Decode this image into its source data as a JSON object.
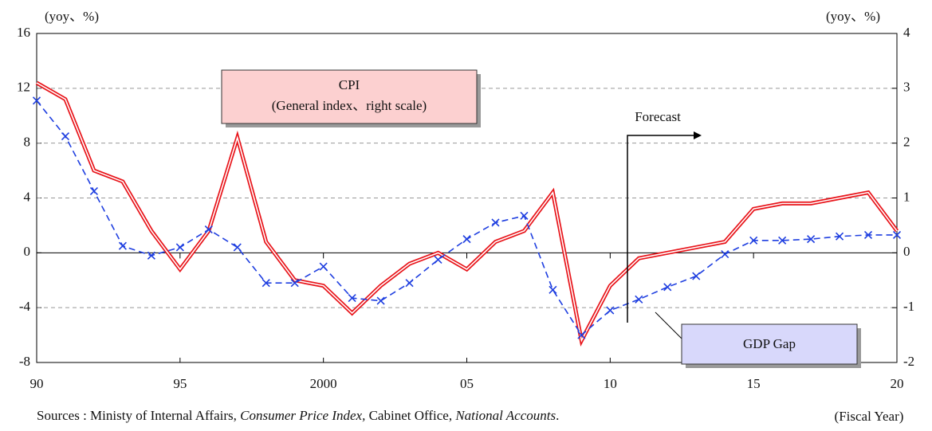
{
  "chart_data": {
    "type": "line",
    "x": [
      1990,
      1991,
      1992,
      1993,
      1994,
      1995,
      1996,
      1997,
      1998,
      1999,
      2000,
      2001,
      2002,
      2003,
      2004,
      2005,
      2006,
      2007,
      2008,
      2009,
      2010,
      2011,
      2012,
      2013,
      2014,
      2015,
      2016,
      2017,
      2018,
      2019,
      2020
    ],
    "xlim": [
      1990,
      2020
    ],
    "xticks": [
      {
        "value": 1990,
        "label": "90"
      },
      {
        "value": 1995,
        "label": "95"
      },
      2000,
      {
        "value": 2005,
        "label": "05"
      },
      {
        "value": 2010,
        "label": "10"
      },
      {
        "value": 2015,
        "label": "15"
      },
      {
        "value": 2020,
        "label": "20"
      }
    ],
    "ylim": [
      -8,
      16
    ],
    "yticks": [
      -8,
      -4,
      0,
      4,
      8,
      12,
      16
    ],
    "y2lim": [
      -2,
      4
    ],
    "y2ticks": [
      -2,
      -1,
      0,
      1,
      2,
      3,
      4
    ],
    "grid": true,
    "y_unit": "(yoy、%)",
    "y2_unit": "(yoy、%)",
    "x_label": "(Fiscal Year)",
    "cpi_note": "(General index、right scale)",
    "forecast_label": "Forecast",
    "source_parts": [
      "Sources : Ministy of Internal Affairs, ",
      "Consumer Price Index,",
      " Cabinet Office, ",
      "National Accounts",
      "."
    ],
    "series": [
      {
        "name": "CPI",
        "color": "#e8141a",
        "axis": "y2",
        "values": [
          3.1,
          2.8,
          1.5,
          1.3,
          0.4,
          -0.3,
          0.4,
          2.1,
          0.2,
          -0.5,
          -0.6,
          -1.1,
          -0.6,
          -0.2,
          0.0,
          -0.3,
          0.2,
          0.4,
          1.1,
          -1.6,
          -0.6,
          -0.1,
          0.0,
          0.1,
          0.2,
          0.8,
          0.9,
          0.9,
          1.0,
          1.1,
          0.4
        ]
      },
      {
        "name": "GDP Gap",
        "color": "#1f3fe0",
        "values": [
          11.1,
          8.5,
          4.5,
          0.5,
          -0.2,
          0.4,
          1.7,
          0.4,
          -2.2,
          -2.2,
          -1.0,
          -3.3,
          -3.5,
          -2.2,
          -0.5,
          1.0,
          2.2,
          2.7,
          -2.7,
          -6.0,
          -4.2,
          -3.4,
          -2.5,
          -1.7,
          -0.1,
          0.9,
          0.9,
          1.0,
          1.2,
          1.3,
          1.3
        ]
      }
    ]
  }
}
